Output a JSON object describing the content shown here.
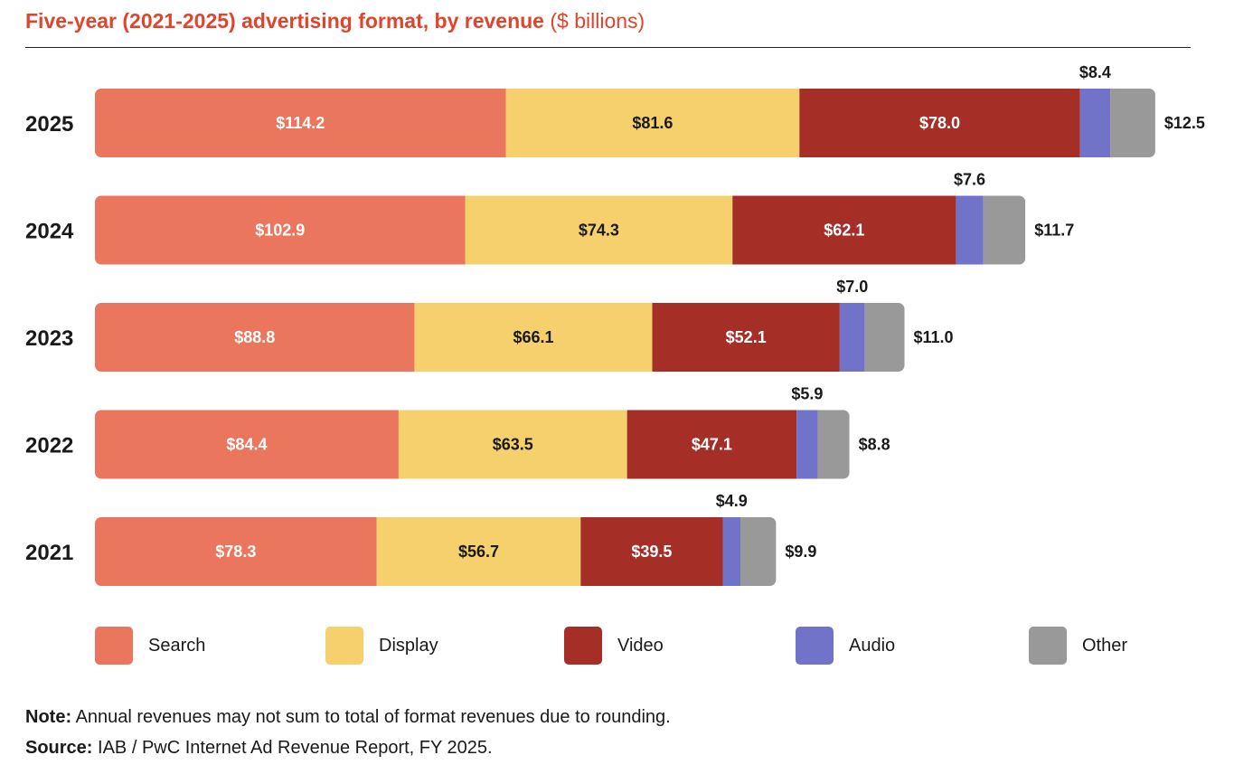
{
  "header": {
    "title_bold": "Five-year (2021-2025) advertising format, by revenue",
    "title_unit": "($ billions)"
  },
  "colors": {
    "Search": "#ea775d",
    "Display": "#f6d06d",
    "Video": "#a52f27",
    "Audio": "#7173c8",
    "Other": "#999999"
  },
  "chart_data": {
    "type": "bar",
    "orientation": "horizontal",
    "stacked": true,
    "categories": [
      "2025",
      "2024",
      "2023",
      "2022",
      "2021"
    ],
    "series": [
      {
        "name": "Search",
        "values": [
          114.2,
          102.9,
          88.8,
          84.4,
          78.3
        ],
        "labels": [
          "$114.2",
          "$102.9",
          "$88.8",
          "$84.4",
          "$78.3"
        ]
      },
      {
        "name": "Display",
        "values": [
          81.6,
          74.3,
          66.1,
          63.5,
          56.7
        ],
        "labels": [
          "$81.6",
          "$74.3",
          "$66.1",
          "$63.5",
          "$56.7"
        ]
      },
      {
        "name": "Video",
        "values": [
          78.0,
          62.1,
          52.1,
          47.1,
          39.5
        ],
        "labels": [
          "$78.0",
          "$62.1",
          "$52.1",
          "$47.1",
          "$39.5"
        ]
      },
      {
        "name": "Audio",
        "values": [
          8.4,
          7.6,
          7.0,
          5.9,
          4.9
        ],
        "labels": [
          "$8.4",
          "$7.6",
          "$7.0",
          "$5.9",
          "$4.9"
        ]
      },
      {
        "name": "Other",
        "values": [
          12.5,
          11.7,
          11.0,
          8.8,
          9.9
        ],
        "labels": [
          "$12.5",
          "$11.7",
          "$11.0",
          "$8.8",
          "$9.9"
        ]
      }
    ],
    "legend": [
      "Search",
      "Display",
      "Video",
      "Audio",
      "Other"
    ],
    "legend_position": "bottom",
    "grid": false
  },
  "notes": {
    "note_label": "Note:",
    "note_text": "Annual revenues may not sum to total of format revenues due to rounding.",
    "source_label": "Source:",
    "source_text": "IAB / PwC Internet Ad Revenue Report, FY 2025."
  }
}
